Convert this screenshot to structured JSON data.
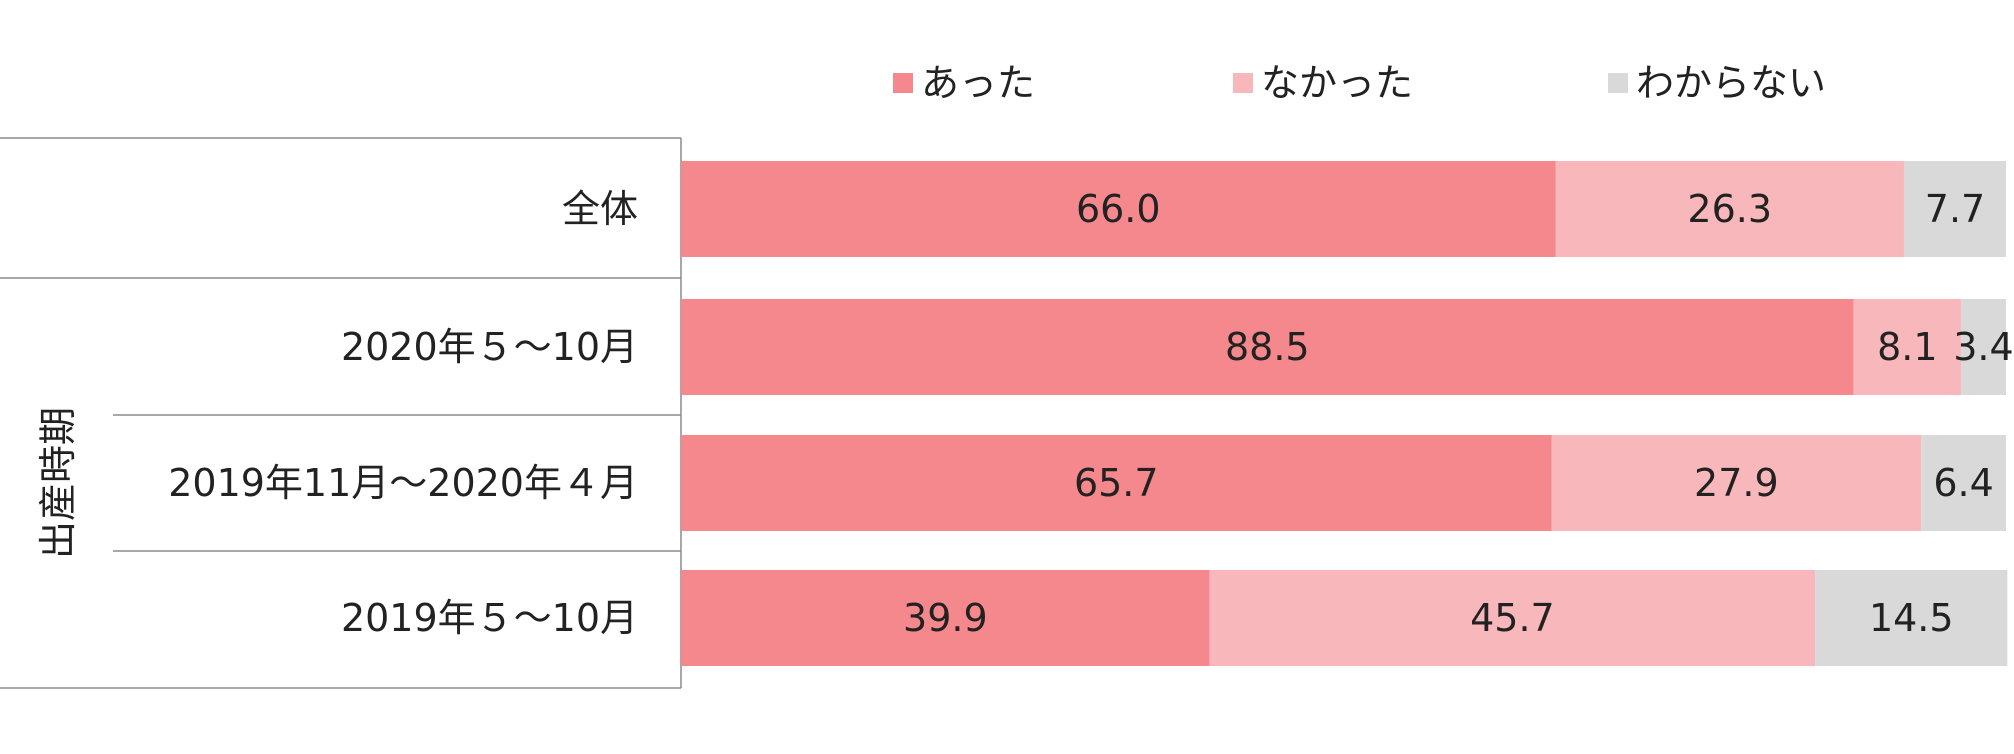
{
  "chart_data": {
    "type": "bar",
    "orientation": "horizontal",
    "stacked": true,
    "title": "",
    "xlabel": "",
    "ylabel": "",
    "xlim": [
      0,
      100
    ],
    "legend_position": "top",
    "grid": false,
    "categories": [
      "全体",
      "2020年５～10月",
      "2019年11月～2020年４月",
      "2019年５～10月"
    ],
    "group_label": "出産時期",
    "grouped_categories": [
      "2020年５～10月",
      "2019年11月～2020年４月",
      "2019年５～10月"
    ],
    "series": [
      {
        "name": "あった",
        "color": "#f4888c",
        "values": [
          66.0,
          88.5,
          65.7,
          39.9
        ],
        "labels": [
          "66.0",
          "88.5",
          "65.7",
          "39.9"
        ]
      },
      {
        "name": "なかった",
        "color": "#f8b8bb",
        "values": [
          26.3,
          8.1,
          27.9,
          45.7
        ],
        "labels": [
          "26.3",
          "8.1",
          "27.9",
          "45.7"
        ]
      },
      {
        "name": "わからない",
        "color": "#d9d9d9",
        "values": [
          7.7,
          3.4,
          6.4,
          14.5
        ],
        "labels": [
          "7.7",
          "3.4",
          "6.4",
          "14.5"
        ]
      }
    ]
  }
}
